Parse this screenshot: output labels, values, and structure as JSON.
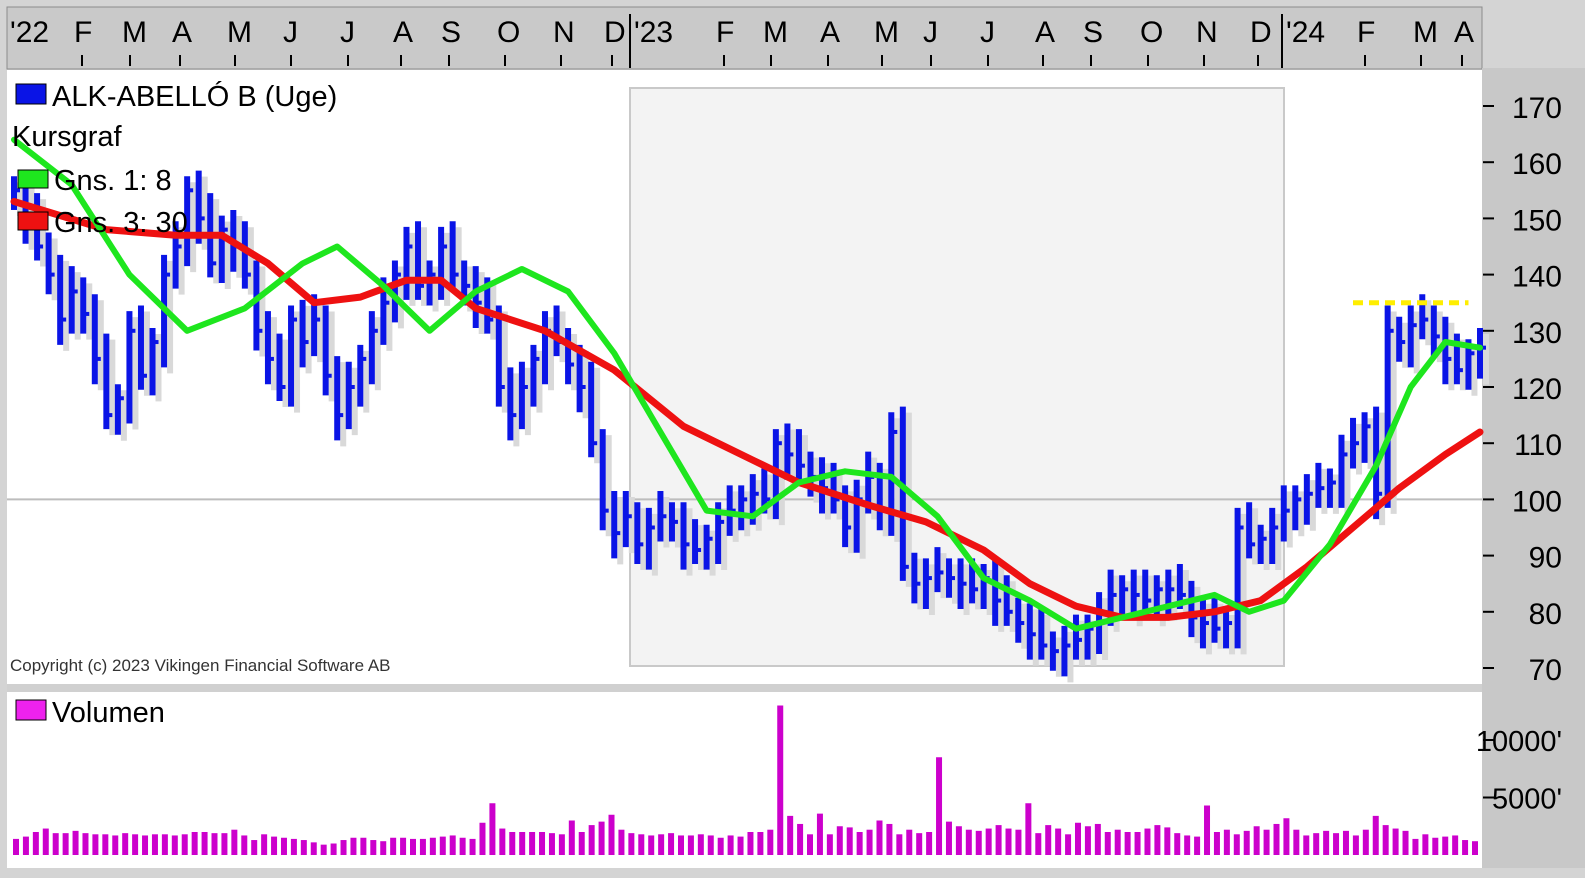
{
  "chart_data": [
    {
      "type": "line",
      "title": "ALK-ABELLÓ B (Uge)",
      "subtitle": "Kursgraf",
      "legend": [
        "ALK-ABELLÓ B (Uge)",
        "Gns. 1: 8",
        "Gns. 3: 30"
      ],
      "legend_position": "top-left",
      "x_ticks": [
        "'22",
        "F",
        "M",
        "A",
        "M",
        "J",
        "J",
        "A",
        "S",
        "O",
        "N",
        "D",
        "'23",
        "F",
        "M",
        "A",
        "M",
        "J",
        "J",
        "A",
        "S",
        "O",
        "N",
        "D",
        "'24",
        "F",
        "M",
        "A"
      ],
      "y_ticks": [
        70,
        80,
        90,
        100,
        110,
        120,
        130,
        140,
        150,
        160,
        170
      ],
      "ylim": [
        67,
        175
      ],
      "reference_line": 100,
      "resistance_level": 135,
      "copyright": "Copyright (c) 2023 Vikingen Financial Software AB",
      "series": [
        {
          "name": "ALK-ABELLÓ B (Uge)",
          "style": "price-bars",
          "color": "#0a14e6",
          "weekly_close": [
            155,
            150,
            145,
            140,
            132,
            137,
            133,
            125,
            115,
            118,
            130,
            122,
            128,
            140,
            145,
            155,
            150,
            142,
            148,
            145,
            140,
            130,
            125,
            120,
            132,
            128,
            132,
            122,
            115,
            120,
            125,
            130,
            135,
            140,
            145,
            138,
            140,
            145,
            140,
            138,
            135,
            132,
            120,
            115,
            120,
            125,
            130,
            128,
            124,
            120,
            110,
            98,
            94,
            97,
            92,
            95,
            97,
            96,
            92,
            91,
            93,
            96,
            98,
            100,
            101,
            100,
            110,
            108,
            106,
            104,
            102,
            100,
            95,
            100,
            104,
            98,
            112,
            88,
            85,
            86,
            87,
            86,
            85,
            84,
            86,
            82,
            80,
            78,
            76,
            74,
            73,
            74,
            75,
            77,
            80,
            83,
            84,
            83,
            82,
            84,
            84,
            83,
            79,
            78,
            77,
            78,
            95,
            92,
            93,
            95,
            98,
            100,
            101,
            102,
            103,
            108,
            110,
            113,
            101,
            130,
            128,
            131,
            132,
            129,
            125,
            123,
            126,
            127
          ]
        },
        {
          "name": "Gns. 1: 8",
          "style": "moving-average",
          "color": "#1ee61e",
          "points": [
            [
              0,
              164
            ],
            [
              5,
              156
            ],
            [
              10,
              140
            ],
            [
              15,
              130
            ],
            [
              20,
              134
            ],
            [
              25,
              142
            ],
            [
              28,
              145
            ],
            [
              32,
              138
            ],
            [
              36,
              130
            ],
            [
              40,
              137
            ],
            [
              44,
              141
            ],
            [
              48,
              137
            ],
            [
              52,
              126
            ],
            [
              56,
              112
            ],
            [
              60,
              98
            ],
            [
              64,
              97
            ],
            [
              68,
              103
            ],
            [
              72,
              105
            ],
            [
              76,
              104
            ],
            [
              80,
              97
            ],
            [
              84,
              86
            ],
            [
              88,
              82
            ],
            [
              92,
              77
            ],
            [
              96,
              79
            ],
            [
              100,
              81
            ],
            [
              104,
              83
            ],
            [
              107,
              80
            ],
            [
              110,
              82
            ],
            [
              114,
              92
            ],
            [
              118,
              106
            ],
            [
              121,
              120
            ],
            [
              124,
              128
            ],
            [
              127,
              127
            ]
          ]
        },
        {
          "name": "Gns. 3: 30",
          "style": "moving-average",
          "color": "#ee1111",
          "points": [
            [
              0,
              153
            ],
            [
              8,
              148
            ],
            [
              14,
              147
            ],
            [
              18,
              147
            ],
            [
              22,
              142
            ],
            [
              26,
              135
            ],
            [
              30,
              136
            ],
            [
              34,
              139
            ],
            [
              37,
              139
            ],
            [
              40,
              134
            ],
            [
              46,
              130
            ],
            [
              52,
              123
            ],
            [
              58,
              113
            ],
            [
              64,
              107
            ],
            [
              68,
              103
            ],
            [
              74,
              99
            ],
            [
              79,
              96
            ],
            [
              84,
              91
            ],
            [
              88,
              85
            ],
            [
              92,
              81
            ],
            [
              96,
              79
            ],
            [
              100,
              79
            ],
            [
              104,
              80
            ],
            [
              108,
              82
            ],
            [
              112,
              88
            ],
            [
              116,
              95
            ],
            [
              120,
              102
            ],
            [
              124,
              108
            ],
            [
              127,
              112
            ]
          ]
        },
        {
          "name": "resistance",
          "style": "dashed",
          "color": "#ffee00",
          "points": [
            [
              116,
              135
            ],
            [
              126,
              135
            ]
          ]
        }
      ]
    },
    {
      "type": "bar",
      "title": "Volumen",
      "legend": [
        "Volumen"
      ],
      "legend_position": "top-left",
      "y_ticks": [
        "10000'",
        "5000'"
      ],
      "y_tick_values": [
        10000,
        5000
      ],
      "ylim": [
        0,
        13000
      ],
      "series": [
        {
          "name": "Volumen",
          "color": "#cc00cc",
          "values": [
            1400,
            1600,
            2000,
            2300,
            1900,
            1900,
            2100,
            1900,
            1800,
            1800,
            1700,
            1900,
            1800,
            1700,
            1800,
            1800,
            1700,
            1800,
            2000,
            2000,
            1900,
            1900,
            2200,
            1700,
            1300,
            1800,
            1600,
            1500,
            1400,
            1300,
            1100,
            900,
            1000,
            1300,
            1500,
            1500,
            1300,
            1200,
            1500,
            1500,
            1400,
            1400,
            1500,
            1600,
            1700,
            1500,
            1400,
            2800,
            4500,
            2300,
            2000,
            2000,
            2000,
            2000,
            1900,
            1800,
            3000,
            2000,
            2600,
            2900,
            3500,
            2200,
            1900,
            1800,
            1700,
            1800,
            1900,
            1700,
            1700,
            1800,
            1700,
            1500,
            1700,
            1600,
            2000,
            2000,
            2200,
            13000,
            3400,
            2700,
            1800,
            3600,
            1800,
            2500,
            2400,
            2000,
            2200,
            3000,
            2700,
            1800,
            2200,
            1900,
            2000,
            8500,
            2900,
            2500,
            2200,
            2100,
            2300,
            2600,
            2300,
            2200,
            4500,
            1900,
            2600,
            2300,
            1800,
            2800,
            2500,
            2700,
            2000,
            2200,
            2000,
            2000,
            2300,
            2600,
            2400,
            1900,
            1700,
            1600,
            4300,
            2000,
            2200,
            1800,
            2100,
            2500,
            2200,
            2700,
            3200,
            2200,
            1700,
            1900,
            2100,
            1900,
            2100,
            1700,
            2200,
            3400,
            2600,
            2300,
            2100,
            1400,
            1800,
            1500,
            1600,
            1700,
            1300,
            1200
          ]
        }
      ]
    }
  ]
}
